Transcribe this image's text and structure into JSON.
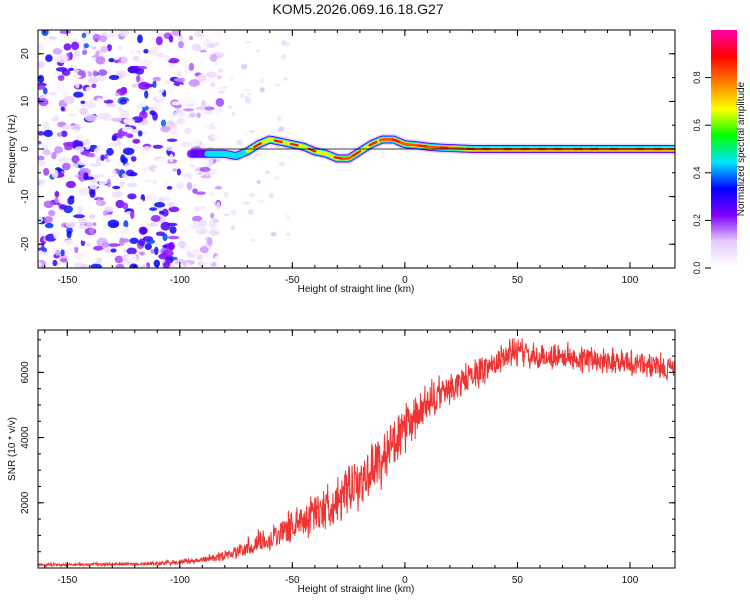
{
  "figure": {
    "title": "KOM5.2026.069.16.18.G27"
  },
  "chart_data": [
    {
      "type": "heatmap",
      "title": "KOM5.2026.069.16.18.G27",
      "xlabel": "Height of straight line (km)",
      "ylabel": "Frequency (Hz)",
      "xlim": [
        -163,
        120
      ],
      "ylim": [
        -25,
        25
      ],
      "x_ticks": [
        -150,
        -100,
        -50,
        0,
        50,
        100
      ],
      "y_ticks": [
        -20,
        -10,
        0,
        10,
        20
      ],
      "colorbar": {
        "label": "Normalized spectral amplitude",
        "range": [
          0,
          1
        ],
        "ticks": [
          "0.0",
          "0.2",
          "0.4",
          "0.6",
          "0.8"
        ],
        "tick_values": [
          0.0,
          0.2,
          0.4,
          0.6,
          0.8
        ],
        "colors": [
          "#ffffff",
          "#e6ccff",
          "#8000ff",
          "#0000ff",
          "#00e5ff",
          "#00ff00",
          "#ffff00",
          "#ff8000",
          "#ff0000",
          "#ff00aa"
        ]
      },
      "noise_region_x": [
        -163,
        -90
      ],
      "ridge": {
        "x": [
          -95,
          -85,
          -80,
          -75,
          -70,
          -65,
          -60,
          -55,
          -50,
          -45,
          -40,
          -35,
          -30,
          -25,
          -20,
          -15,
          -10,
          -5,
          0,
          5,
          10,
          15,
          20,
          30,
          40,
          50,
          60,
          70,
          80,
          90,
          100,
          110,
          120
        ],
        "freq": [
          -1,
          -1,
          -1,
          -1.5,
          -0.5,
          1,
          2,
          1.5,
          1,
          0.5,
          -0.5,
          -1,
          -2,
          -2,
          -0.5,
          1,
          2,
          2,
          1,
          0.8,
          0.5,
          0.3,
          0.2,
          0,
          0,
          0,
          0,
          0,
          0,
          0,
          0,
          0,
          0
        ],
        "amplitude": [
          0.3,
          0.45,
          0.5,
          0.55,
          0.6,
          0.7,
          0.75,
          0.7,
          0.65,
          0.6,
          0.6,
          0.65,
          0.75,
          0.8,
          0.7,
          0.7,
          0.8,
          0.85,
          0.85,
          0.85,
          0.85,
          0.9,
          0.9,
          0.95,
          0.95,
          0.95,
          0.95,
          0.95,
          0.95,
          0.95,
          0.95,
          0.95,
          0.95
        ]
      }
    },
    {
      "type": "line",
      "xlabel": "Height of straight line (km)",
      "ylabel": "SNR (10 * v/v)",
      "xlim": [
        -163,
        120
      ],
      "ylim": [
        0,
        7300
      ],
      "x_ticks": [
        -150,
        -100,
        -50,
        0,
        50,
        100
      ],
      "y_ticks": [
        2000,
        4000,
        6000
      ],
      "series": [
        {
          "name": "SNR",
          "color": "#ee3333",
          "x": [
            -163,
            -150,
            -140,
            -130,
            -120,
            -110,
            -100,
            -90,
            -80,
            -75,
            -70,
            -65,
            -60,
            -55,
            -50,
            -45,
            -40,
            -35,
            -30,
            -25,
            -20,
            -15,
            -10,
            -5,
            0,
            5,
            10,
            15,
            20,
            25,
            30,
            35,
            40,
            45,
            50,
            55,
            60,
            65,
            70,
            80,
            90,
            100,
            110,
            120
          ],
          "values": [
            100,
            100,
            110,
            120,
            120,
            140,
            180,
            250,
            400,
            500,
            600,
            800,
            900,
            1100,
            1300,
            1500,
            1700,
            1900,
            2100,
            2300,
            2600,
            3000,
            3400,
            3800,
            4200,
            4600,
            5000,
            5300,
            5500,
            5700,
            5900,
            6100,
            6300,
            6500,
            6700,
            6500,
            6400,
            6500,
            6500,
            6400,
            6400,
            6300,
            6200,
            6100
          ],
          "noise_amplitude": [
            40,
            40,
            40,
            40,
            40,
            60,
            70,
            80,
            150,
            200,
            250,
            300,
            350,
            400,
            450,
            500,
            550,
            600,
            600,
            650,
            650,
            700,
            750,
            700,
            650,
            600,
            550,
            500,
            450,
            450,
            400,
            400,
            400,
            400,
            400,
            350,
            350,
            350,
            350,
            350,
            350,
            350,
            350,
            350
          ]
        }
      ]
    }
  ]
}
